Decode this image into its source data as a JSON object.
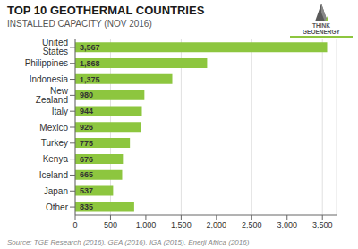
{
  "chart_data": {
    "type": "bar",
    "orientation": "horizontal",
    "title": "TOP 10 GEOTHERMAL COUNTRIES",
    "subtitle": "INSTALLED CAPACITY (NOV 2016)",
    "annotations": [
      "Source: TGE Research (2016), GEA (2016), IGA (2015), Enerji Africa (2016)",
      "THINK",
      "GEOENERGY"
    ],
    "categories": [
      "United States",
      "Philippines",
      "Indonesia",
      "New Zealand",
      "Italy",
      "Mexico",
      "Turkey",
      "Kenya",
      "Iceland",
      "Japan",
      "Other"
    ],
    "values": [
      3567,
      1868,
      1375,
      980,
      944,
      926,
      775,
      676,
      665,
      537,
      835
    ],
    "value_labels": [
      "3,567",
      "1,868",
      "1,375",
      "980",
      "944",
      "926",
      "775",
      "676",
      "665",
      "537",
      "835"
    ],
    "data_labels": true,
    "color": "#8DC63F",
    "xlim": [
      0,
      3700
    ],
    "xticks": [
      0,
      500,
      {
        "value": 1000,
        "label": "1,000"
      },
      {
        "value": 1500,
        "label": "1,500"
      },
      {
        "value": 2000,
        "label": "2,000"
      },
      {
        "value": 2500,
        "label": "2,500"
      },
      {
        "value": 3000,
        "label": "3,000"
      },
      {
        "value": 3500,
        "label": "3,500"
      }
    ],
    "grid": true
  }
}
